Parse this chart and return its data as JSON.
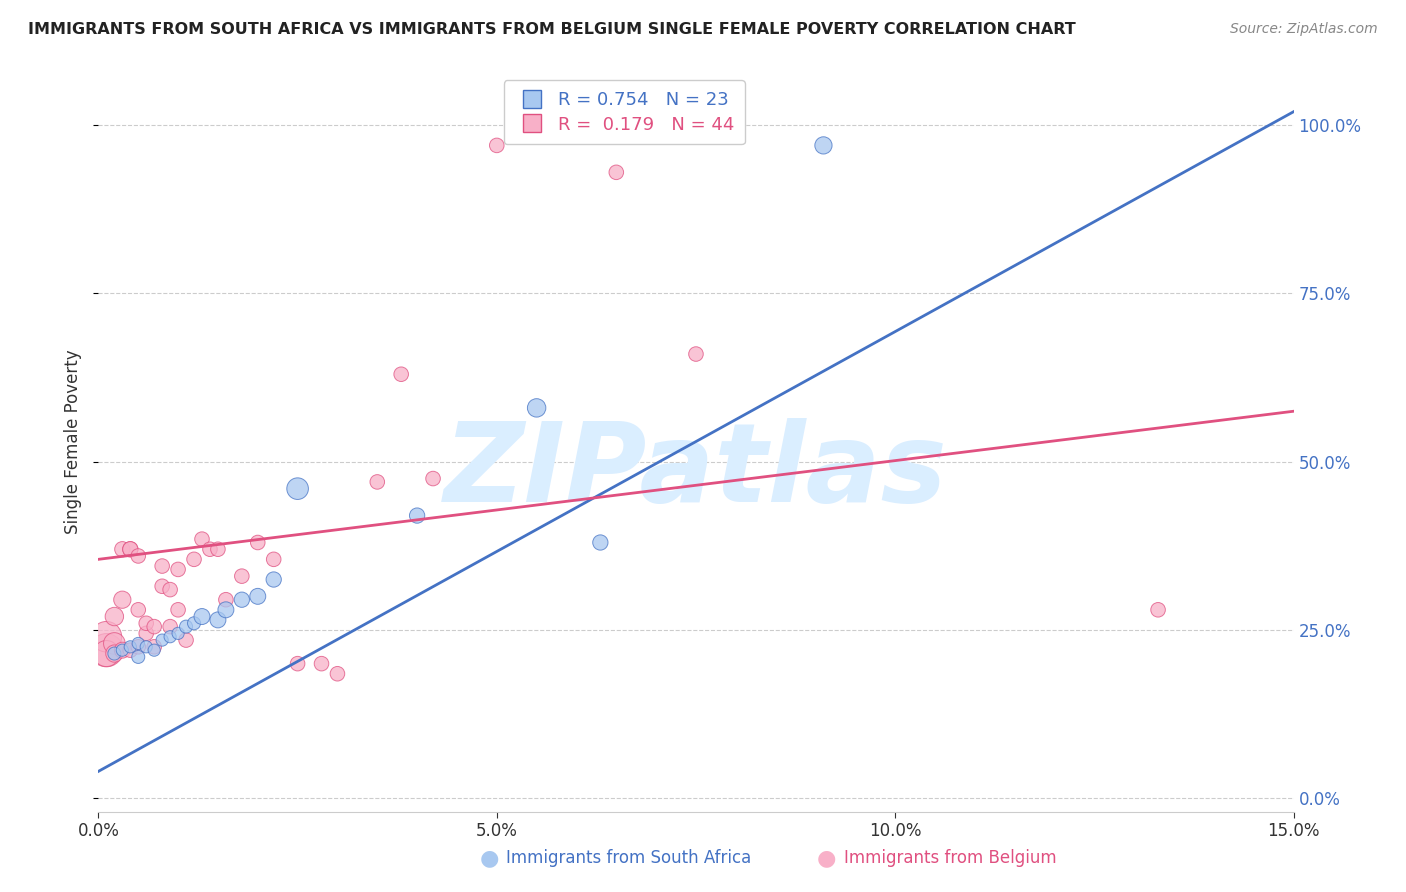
{
  "title": "IMMIGRANTS FROM SOUTH AFRICA VS IMMIGRANTS FROM BELGIUM SINGLE FEMALE POVERTY CORRELATION CHART",
  "source": "Source: ZipAtlas.com",
  "ylabel": "Single Female Poverty",
  "xlim": [
    0.0,
    0.15
  ],
  "ylim": [
    -0.02,
    1.08
  ],
  "yticks": [
    0.0,
    0.25,
    0.5,
    0.75,
    1.0
  ],
  "xticks": [
    0.0,
    0.05,
    0.1,
    0.15
  ],
  "legend_labels": [
    "Immigrants from South Africa",
    "Immigrants from Belgium"
  ],
  "R_south_africa": 0.754,
  "N_south_africa": 23,
  "R_belgium": 0.179,
  "N_belgium": 44,
  "color_south_africa": "#a8c8f0",
  "color_belgium": "#f8b0c8",
  "line_color_south_africa": "#4472c4",
  "line_color_belgium": "#e05080",
  "watermark_text": "ZIPatlas",
  "watermark_color": "#daeeff",
  "sa_line_x0": 0.0,
  "sa_line_y0": 0.04,
  "sa_line_x1": 0.15,
  "sa_line_y1": 1.02,
  "be_line_x0": 0.0,
  "be_line_y0": 0.355,
  "be_line_x1": 0.15,
  "be_line_y1": 0.575,
  "south_africa_x": [
    0.002,
    0.003,
    0.004,
    0.005,
    0.005,
    0.006,
    0.007,
    0.008,
    0.009,
    0.01,
    0.011,
    0.012,
    0.013,
    0.015,
    0.016,
    0.018,
    0.02,
    0.022,
    0.025,
    0.04,
    0.055,
    0.063,
    0.091
  ],
  "south_africa_y": [
    0.215,
    0.22,
    0.225,
    0.21,
    0.23,
    0.225,
    0.22,
    0.235,
    0.24,
    0.245,
    0.255,
    0.26,
    0.27,
    0.265,
    0.28,
    0.295,
    0.3,
    0.325,
    0.46,
    0.42,
    0.58,
    0.38,
    0.97
  ],
  "south_africa_sizes": [
    40,
    35,
    35,
    40,
    35,
    35,
    35,
    35,
    35,
    35,
    40,
    40,
    60,
    60,
    60,
    55,
    60,
    55,
    110,
    55,
    80,
    55,
    70
  ],
  "belgium_x": [
    0.001,
    0.001,
    0.001,
    0.002,
    0.002,
    0.002,
    0.003,
    0.003,
    0.003,
    0.004,
    0.004,
    0.004,
    0.005,
    0.005,
    0.005,
    0.006,
    0.006,
    0.007,
    0.007,
    0.008,
    0.008,
    0.009,
    0.009,
    0.01,
    0.01,
    0.011,
    0.012,
    0.013,
    0.014,
    0.015,
    0.016,
    0.018,
    0.02,
    0.022,
    0.025,
    0.028,
    0.03,
    0.035,
    0.038,
    0.042,
    0.05,
    0.065,
    0.075,
    0.133
  ],
  "belgium_y": [
    0.22,
    0.24,
    0.215,
    0.23,
    0.27,
    0.215,
    0.295,
    0.22,
    0.37,
    0.37,
    0.37,
    0.22,
    0.225,
    0.28,
    0.36,
    0.245,
    0.26,
    0.225,
    0.255,
    0.315,
    0.345,
    0.255,
    0.31,
    0.28,
    0.34,
    0.235,
    0.355,
    0.385,
    0.37,
    0.37,
    0.295,
    0.33,
    0.38,
    0.355,
    0.2,
    0.2,
    0.185,
    0.47,
    0.63,
    0.475,
    0.97,
    0.93,
    0.66,
    0.28
  ],
  "belgium_sizes": [
    260,
    220,
    160,
    110,
    80,
    70,
    70,
    60,
    55,
    55,
    55,
    50,
    50,
    50,
    50,
    50,
    50,
    50,
    50,
    50,
    50,
    50,
    50,
    50,
    50,
    50,
    50,
    50,
    50,
    50,
    50,
    50,
    50,
    50,
    50,
    50,
    50,
    50,
    50,
    50,
    50,
    50,
    50,
    50
  ]
}
